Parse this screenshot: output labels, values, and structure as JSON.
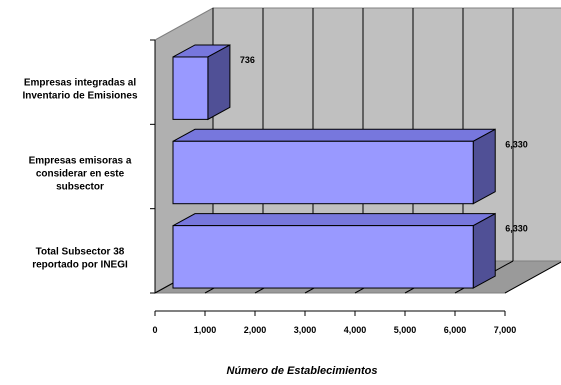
{
  "chart_data": {
    "type": "bar",
    "orientation": "horizontal",
    "three_d": true,
    "categories": [
      [
        "Empresas integradas al",
        "Inventario de Emisiones"
      ],
      [
        "Empresas emisoras a",
        "considerar en este",
        "subsector"
      ],
      [
        "Total Subsector 38",
        "reportado por INEGI"
      ]
    ],
    "values": [
      736,
      6330,
      6330
    ],
    "data_labels": [
      "736",
      "6,330",
      "6,330"
    ],
    "xlabel": "Número de Establecimientos",
    "xlim": [
      0,
      7000
    ],
    "xticks": [
      "0",
      "1,000",
      "2,000",
      "3,000",
      "4,000",
      "5,000",
      "6,000",
      "7,000"
    ],
    "grid": "vertical",
    "legend": "none",
    "colors": {
      "bar_front": "#9999ff",
      "bar_top": "#7777dd",
      "bar_side": "#505096",
      "back_wall": "#c0c0c0",
      "floor": "#9a9a9a",
      "grid": "#000000"
    }
  }
}
